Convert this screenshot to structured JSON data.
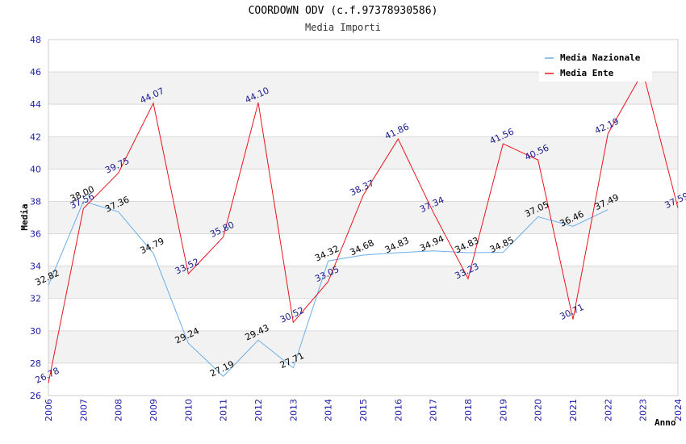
{
  "chart_data": {
    "type": "line",
    "title": "COORDOWN ODV (c.f.97378930586)",
    "subtitle": "Media Importi",
    "xlabel": "Anno",
    "ylabel": "Media",
    "ylim": [
      26,
      48
    ],
    "yticks": [
      26,
      28,
      30,
      32,
      34,
      36,
      38,
      40,
      42,
      44,
      46,
      48
    ],
    "x": [
      "2006",
      "2007",
      "2008",
      "2009",
      "2010",
      "2011",
      "2012",
      "2013",
      "2014",
      "2015",
      "2016",
      "2017",
      "2018",
      "2019",
      "2020",
      "2021",
      "2022",
      "2023",
      "2024"
    ],
    "series": [
      {
        "name": "Media Nazionale",
        "color": "#6aaee8",
        "label_color": "#000000",
        "values": [
          32.82,
          38.0,
          37.36,
          34.79,
          29.24,
          27.19,
          29.43,
          27.71,
          34.32,
          34.68,
          34.83,
          34.94,
          34.83,
          34.85,
          37.05,
          36.46,
          37.49,
          null,
          null
        ],
        "labels": [
          "32.82",
          "38.00",
          "37.36",
          "34.79",
          "29.24",
          "27.19",
          "29.43",
          "27.71",
          "34.32",
          "34.68",
          "34.83",
          "34.94",
          "34.83",
          "34.85",
          "37.05",
          "36.46",
          "37.49",
          null,
          null
        ]
      },
      {
        "name": "Media Ente",
        "color": "#e8141e",
        "label_color": "#1a1a8c",
        "values": [
          26.78,
          37.56,
          39.75,
          44.07,
          33.52,
          35.8,
          44.1,
          30.52,
          33.05,
          38.37,
          41.86,
          37.34,
          33.23,
          41.56,
          40.56,
          30.71,
          42.19,
          46.0,
          37.59
        ],
        "labels": [
          "26.78",
          "37.56",
          "39.75",
          "44.07",
          "33.52",
          "35.80",
          "44.10",
          "30.52",
          "33.05",
          "38.37",
          "41.86",
          "37.34",
          "33.23",
          "41.56",
          "40.56",
          "30.71",
          "42.19",
          null,
          "37.59"
        ]
      }
    ],
    "legend_position": "top-right"
  }
}
